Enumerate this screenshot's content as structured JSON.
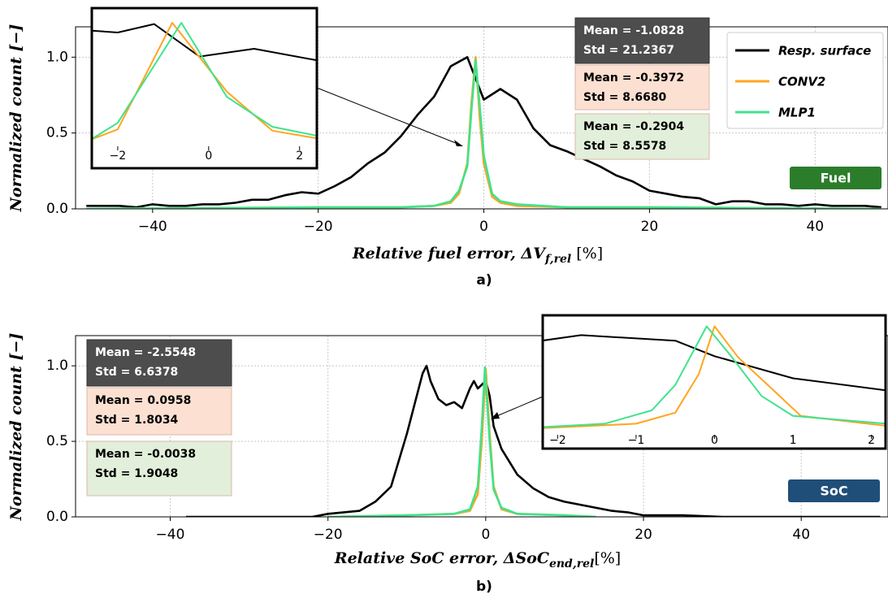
{
  "chart_data": [
    {
      "type": "line",
      "ylabel": "Normalized count [−]",
      "xlabel": [
        "Relative fuel error, ΔV",
        "f,rel",
        " [%]"
      ],
      "caption": "a)",
      "xlim": [
        -49.3,
        48.8
      ],
      "ylim": [
        0,
        1.2
      ],
      "grid": true,
      "legend": "upper right",
      "xticks": [
        {
          "value": -40,
          "label": "−40"
        },
        {
          "value": -20,
          "label": "−20"
        },
        0,
        20,
        40
      ],
      "yticks": [
        {
          "value": 0,
          "label": "0.0"
        },
        {
          "value": 0.5,
          "label": "0.5"
        },
        {
          "value": 1,
          "label": "1.0"
        }
      ],
      "series": [
        {
          "name": "Resp. surface",
          "color": "#000000",
          "x": [
            -48,
            -46,
            -44,
            -42,
            -40,
            -38,
            -36,
            -34,
            -32,
            -30,
            -28,
            -26,
            -24,
            -22,
            -20,
            -18,
            -16,
            -14,
            -12,
            -10,
            -8,
            -6,
            -4,
            -2,
            0,
            2,
            4,
            6,
            8,
            10,
            12,
            14,
            16,
            18,
            20,
            22,
            24,
            26,
            28,
            30,
            32,
            34,
            36,
            38,
            40,
            42,
            44,
            46,
            48
          ],
          "values": [
            0.02,
            0.02,
            0.02,
            0.01,
            0.03,
            0.02,
            0.02,
            0.03,
            0.03,
            0.04,
            0.06,
            0.06,
            0.09,
            0.11,
            0.1,
            0.15,
            0.21,
            0.3,
            0.37,
            0.48,
            0.62,
            0.74,
            0.94,
            1.0,
            0.72,
            0.79,
            0.72,
            0.53,
            0.42,
            0.38,
            0.33,
            0.28,
            0.22,
            0.18,
            0.12,
            0.1,
            0.08,
            0.07,
            0.03,
            0.05,
            0.05,
            0.03,
            0.03,
            0.02,
            0.03,
            0.02,
            0.02,
            0.02,
            0.01
          ]
        },
        {
          "name": "CONV2",
          "color": "#ffa51f",
          "x": [
            -48,
            -20,
            -10,
            -6,
            -4,
            -3,
            -2,
            -1.5,
            -1,
            -0.5,
            0,
            1,
            2,
            4,
            10,
            20,
            48
          ],
          "values": [
            0,
            0.01,
            0.01,
            0.02,
            0.04,
            0.1,
            0.3,
            0.7,
            1.0,
            0.6,
            0.3,
            0.08,
            0.04,
            0.02,
            0.01,
            0.01,
            0
          ]
        },
        {
          "name": "MLP1",
          "color": "#3fe38c",
          "x": [
            -48,
            -20,
            -10,
            -6,
            -4,
            -3,
            -2,
            -1.5,
            -1,
            -0.5,
            0,
            1,
            2,
            4,
            10,
            20,
            48
          ],
          "values": [
            0,
            0.01,
            0.01,
            0.02,
            0.05,
            0.12,
            0.28,
            0.65,
            0.98,
            0.68,
            0.35,
            0.1,
            0.05,
            0.03,
            0.01,
            0.01,
            0
          ]
        }
      ],
      "stats": [
        {
          "lines": [
            "Mean = -1.0828",
            "Std = 21.2367"
          ],
          "color": "#4d4d4d",
          "text_color": "#ffffff"
        },
        {
          "lines": [
            "Mean = -0.3972",
            "Std = 8.6680"
          ],
          "color": "#fce0d2",
          "text_color": "#000000"
        },
        {
          "lines": [
            "Mean = -0.2904",
            "Std = 8.5578"
          ],
          "color": "#e2efda",
          "text_color": "#000000"
        }
      ],
      "badge": {
        "text": "Fuel",
        "color": "#2b7d2b"
      }
    },
    {
      "type": "line",
      "xlim": [
        -2.57,
        2.38
      ],
      "ylim": [
        0,
        1.05
      ],
      "xticks": [
        {
          "value": -2,
          "label": "−2"
        },
        0,
        2
      ],
      "series": [
        {
          "color": "#000000",
          "x": [
            -2.6,
            -2,
            -1.2,
            -0.2,
            1,
            2.4
          ],
          "values": [
            0.89,
            0.875,
            0.94,
            0.69,
            0.75,
            0.66
          ]
        },
        {
          "color": "#ffa51f",
          "x": [
            -2.6,
            -2,
            -0.8,
            0.4,
            1.4,
            2.4
          ],
          "values": [
            0.05,
            0.13,
            0.95,
            0.42,
            0.12,
            0.06
          ]
        },
        {
          "color": "#3fe38c",
          "x": [
            -2.6,
            -2,
            -0.6,
            0.4,
            1.4,
            2.4
          ],
          "values": [
            0.05,
            0.18,
            0.95,
            0.38,
            0.15,
            0.08
          ]
        }
      ]
    },
    {
      "type": "line",
      "ylabel": "Normalized count [−]",
      "xlabel": [
        "Relative SoC error, ΔSoC",
        "end,rel",
        "[%]"
      ],
      "caption": "b)",
      "xlim": [
        -52,
        51
      ],
      "ylim": [
        0,
        1.2
      ],
      "grid": true,
      "xticks": [
        {
          "value": -40,
          "label": "−40"
        },
        {
          "value": -20,
          "label": "−20"
        },
        0,
        20,
        40
      ],
      "yticks": [
        {
          "value": 0,
          "label": "0.0"
        },
        {
          "value": 0.5,
          "label": "0.5"
        },
        {
          "value": 1,
          "label": "1.0"
        }
      ],
      "series": [
        {
          "color": "#000000",
          "x": [
            -38,
            -30,
            -22,
            -20,
            -18,
            -16,
            -14,
            -12,
            -10,
            -9,
            -8,
            -7.5,
            -7,
            -6,
            -5,
            -4,
            -3,
            -2,
            -1.5,
            -1,
            0,
            0.5,
            1,
            2,
            4,
            6,
            8,
            10,
            12,
            14,
            16,
            18,
            20,
            25,
            30,
            40,
            50
          ],
          "values": [
            0,
            0,
            0,
            0.02,
            0.03,
            0.04,
            0.1,
            0.2,
            0.55,
            0.75,
            0.95,
            1.0,
            0.9,
            0.78,
            0.74,
            0.76,
            0.72,
            0.85,
            0.9,
            0.85,
            0.9,
            0.8,
            0.6,
            0.45,
            0.28,
            0.19,
            0.13,
            0.1,
            0.08,
            0.06,
            0.04,
            0.03,
            0.01,
            0.01,
            0,
            0,
            0
          ]
        },
        {
          "color": "#ffa51f",
          "x": [
            -20,
            -10,
            -4,
            -2,
            -1,
            -0.5,
            0,
            0.5,
            1,
            2,
            4,
            10,
            14
          ],
          "values": [
            0,
            0.01,
            0.02,
            0.04,
            0.15,
            0.5,
            0.98,
            0.55,
            0.2,
            0.05,
            0.02,
            0.01,
            0
          ]
        },
        {
          "color": "#3fe38c",
          "x": [
            -20,
            -10,
            -4,
            -2,
            -1,
            -0.5,
            -0.1,
            0.5,
            1,
            2,
            4,
            10,
            14
          ],
          "values": [
            0,
            0.01,
            0.02,
            0.05,
            0.2,
            0.6,
            0.99,
            0.5,
            0.18,
            0.06,
            0.02,
            0.01,
            0
          ]
        }
      ],
      "stats": [
        {
          "lines": [
            "Mean = -2.5548",
            "Std = 6.6378"
          ],
          "color": "#4d4d4d",
          "text_color": "#ffffff"
        },
        {
          "lines": [
            "Mean = 0.0958",
            "Std = 1.8034"
          ],
          "color": "#fce0d2",
          "text_color": "#000000"
        },
        {
          "lines": [
            "Mean = -0.0038",
            "Std = 1.9048"
          ],
          "color": "#e2efda",
          "text_color": "#000000"
        }
      ],
      "badge": {
        "text": "SoC",
        "color": "#1f4e79"
      }
    },
    {
      "type": "line",
      "xlim": [
        -2.19,
        2.18
      ],
      "ylim": [
        0,
        1.05
      ],
      "xticks": [
        {
          "value": -2,
          "label": "−2"
        },
        {
          "value": -1,
          "label": "−1"
        },
        0,
        1,
        2
      ],
      "series": [
        {
          "color": "#000000",
          "x": [
            -2.2,
            -1.7,
            -0.5,
            0,
            1,
            2.2
          ],
          "values": [
            0.85,
            0.9,
            0.85,
            0.71,
            0.51,
            0.4
          ]
        },
        {
          "color": "#ffa51f",
          "x": [
            -2.2,
            -1,
            -0.5,
            -0.2,
            0,
            0.3,
            0.8,
            1.1,
            2.2
          ],
          "values": [
            0.06,
            0.1,
            0.2,
            0.55,
            0.98,
            0.7,
            0.37,
            0.17,
            0.08
          ]
        },
        {
          "color": "#3fe38c",
          "x": [
            -2.2,
            -1.4,
            -0.8,
            -0.5,
            -0.1,
            0.2,
            0.6,
            1,
            2.2
          ],
          "values": [
            0.07,
            0.1,
            0.22,
            0.45,
            0.98,
            0.72,
            0.35,
            0.17,
            0.1
          ]
        }
      ]
    }
  ]
}
